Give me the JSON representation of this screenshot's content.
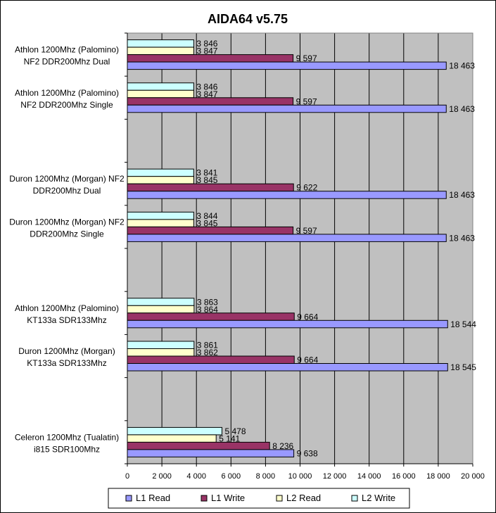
{
  "chart_data": {
    "type": "bar",
    "orientation": "horizontal",
    "title": "AIDA64 v5.75",
    "xlabel": "",
    "ylabel": "",
    "xlim": [
      0,
      20000
    ],
    "x_ticks": [
      "0",
      "2 000",
      "4 000",
      "6 000",
      "8 000",
      "10 000",
      "12 000",
      "14 000",
      "16 000",
      "18 000",
      "20 000"
    ],
    "grid": true,
    "legend_position": "bottom",
    "plot_background": "#c0c0c0",
    "groups": [
      {
        "label_lines": [
          "Athlon 1200Mhz (Palomino)",
          "NF2 DDR200Mhz Dual"
        ],
        "values": {
          "L2 Write": 3846,
          "L2 Read": 3847,
          "L1 Write": 9597,
          "L1 Read": 18463
        },
        "labels": {
          "L2 Write": "3 846",
          "L2 Read": "3 847",
          "L1 Write": "9 597",
          "L1 Read": "18 463"
        }
      },
      {
        "label_lines": [
          "Athlon 1200Mhz (Palomino)",
          "NF2 DDR200Mhz Single"
        ],
        "values": {
          "L2 Write": 3846,
          "L2 Read": 3847,
          "L1 Write": 9597,
          "L1 Read": 18463
        },
        "labels": {
          "L2 Write": "3 846",
          "L2 Read": "3 847",
          "L1 Write": "9 597",
          "L1 Read": "18 463"
        }
      },
      {
        "label_lines": [
          "",
          ""
        ],
        "values": {},
        "labels": {}
      },
      {
        "label_lines": [
          "Duron 1200Mhz (Morgan) NF2",
          "DDR200Mhz Dual"
        ],
        "values": {
          "L2 Write": 3841,
          "L2 Read": 3845,
          "L1 Write": 9622,
          "L1 Read": 18463
        },
        "labels": {
          "L2 Write": "3 841",
          "L2 Read": "3 845",
          "L1 Write": "9 622",
          "L1 Read": "18 463"
        }
      },
      {
        "label_lines": [
          "Duron 1200Mhz (Morgan) NF2",
          "DDR200Mhz Single"
        ],
        "values": {
          "L2 Write": 3844,
          "L2 Read": 3845,
          "L1 Write": 9597,
          "L1 Read": 18463
        },
        "labels": {
          "L2 Write": "3 844",
          "L2 Read": "3 845",
          "L1 Write": "9 597",
          "L1 Read": "18 463"
        }
      },
      {
        "label_lines": [
          "",
          ""
        ],
        "values": {},
        "labels": {}
      },
      {
        "label_lines": [
          "Athlon 1200Mhz (Palomino)",
          "KT133a SDR133Mhz"
        ],
        "values": {
          "L2 Write": 3863,
          "L2 Read": 3864,
          "L1 Write": 9664,
          "L1 Read": 18544
        },
        "labels": {
          "L2 Write": "3 863",
          "L2 Read": "3 864",
          "L1 Write": "9 664",
          "L1 Read": "18 544"
        }
      },
      {
        "label_lines": [
          "Duron 1200Mhz (Morgan)",
          "KT133a SDR133Mhz"
        ],
        "values": {
          "L2 Write": 3861,
          "L2 Read": 3862,
          "L1 Write": 9664,
          "L1 Read": 18545
        },
        "labels": {
          "L2 Write": "3 861",
          "L2 Read": "3 862",
          "L1 Write": "9 664",
          "L1 Read": "18 545"
        }
      },
      {
        "label_lines": [
          "",
          ""
        ],
        "values": {},
        "labels": {}
      },
      {
        "label_lines": [
          "Celeron 1200Mhz (Tualatin)",
          "i815 SDR100Mhz"
        ],
        "values": {
          "L2 Write": 5478,
          "L2 Read": 5141,
          "L1 Write": 8236,
          "L1 Read": 9638
        },
        "labels": {
          "L2 Write": "5 478",
          "L2 Read": "5 141",
          "L1 Write": "8 236",
          "L1 Read": "9 638"
        }
      }
    ],
    "bar_order_top_to_bottom": [
      "L2 Write",
      "L2 Read",
      "L1 Write",
      "L1 Read"
    ],
    "legend": [
      {
        "name": "L1 Read",
        "color": "#9999ff"
      },
      {
        "name": "L1 Write",
        "color": "#993366"
      },
      {
        "name": "L2 Read",
        "color": "#ffffcc"
      },
      {
        "name": "L2 Write",
        "color": "#ccffff"
      }
    ]
  }
}
